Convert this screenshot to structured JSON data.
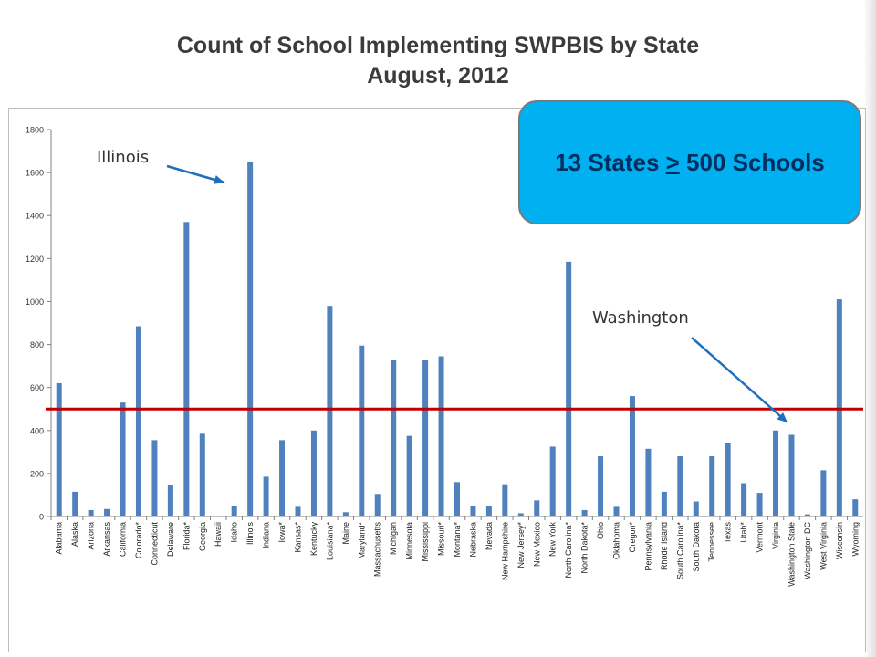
{
  "title": {
    "line1": "Count of School Implementing SWPBIS by State",
    "line2": "August, 2012"
  },
  "callout": {
    "text_before": "13 States ",
    "symbol": ">",
    "text_after": " 500 Schools",
    "fill_color": "#00b0f0",
    "text_color": "#002f5f"
  },
  "annotations": [
    {
      "label": "Illinois",
      "points_to": "Illinois"
    },
    {
      "label": "Washington",
      "points_to": "Washington State"
    }
  ],
  "colors": {
    "bar": "#4f81bd",
    "threshold_line": "#c00000",
    "arrow": "#1f6fbf"
  },
  "chart_data": {
    "type": "bar",
    "title": "Count of School Implementing SWPBIS by State August, 2012",
    "xlabel": "",
    "ylabel": "",
    "ylim": [
      0,
      1800
    ],
    "yticks": [
      0,
      200,
      400,
      600,
      800,
      1000,
      1200,
      1400,
      1600,
      1800
    ],
    "grid": false,
    "categories": [
      "Alabama",
      "Alaska",
      "Arizona",
      "Arkansas",
      "California",
      "Colorado*",
      "Connecticut",
      "Delaware",
      "Florida*",
      "Georgia",
      "Hawaii",
      "Idaho",
      "Illinois",
      "Indiana",
      "Iowa*",
      "Kansas*",
      "Kentucky",
      "Louisiana*",
      "Maine",
      "Maryland*",
      "Massachusetts",
      "Michigan",
      "Minnesota",
      "Mississippi",
      "Missouri*",
      "Montana*",
      "Nebraska",
      "Nevada",
      "New Hampshire",
      "New Jersey*",
      "New Mexico",
      "New York",
      "North Carolina*",
      "North Dakota*",
      "Ohio",
      "Oklahoma",
      "Oregon*",
      "Pennsylvania",
      "Rhode Island",
      "South Carolina*",
      "South Dakota",
      "Tennessee",
      "Texas",
      "Utah*",
      "Vermont",
      "Virginia",
      "Washington State",
      "Washington DC",
      "West Virginia",
      "Wisconsin",
      "Wyoming"
    ],
    "values": [
      620,
      115,
      30,
      35,
      530,
      885,
      355,
      145,
      1370,
      385,
      0,
      50,
      1650,
      185,
      355,
      45,
      400,
      980,
      20,
      795,
      105,
      730,
      375,
      730,
      745,
      160,
      50,
      50,
      150,
      15,
      75,
      325,
      1185,
      30,
      280,
      45,
      560,
      315,
      115,
      280,
      70,
      280,
      340,
      155,
      110,
      400,
      380,
      10,
      215,
      1010,
      80
    ],
    "reference_line": {
      "value": 500
    }
  }
}
